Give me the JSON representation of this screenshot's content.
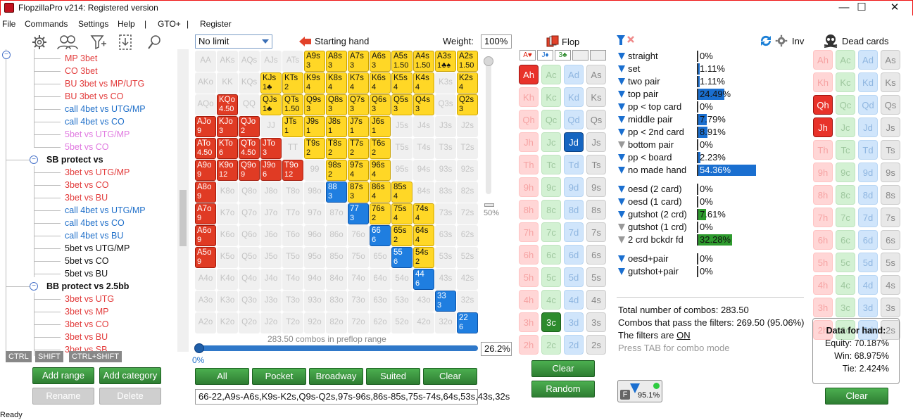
{
  "window": {
    "title": "FlopzillaPro v214: Registered version"
  },
  "menu": [
    "File",
    "Commands",
    "Settings",
    "Help",
    "|",
    "GTO+",
    "|",
    "Register"
  ],
  "tree": [
    {
      "t": "MP 3bet",
      "c": "#e23b3b",
      "lvl": 2
    },
    {
      "t": "CO 3bet",
      "c": "#e23b3b",
      "lvl": 2
    },
    {
      "t": "BU 3bet vs MP/UTG",
      "c": "#e23b3b",
      "lvl": 2
    },
    {
      "t": "BU 3bet vs CO",
      "c": "#e23b3b",
      "lvl": 2
    },
    {
      "t": "call 4bet vs UTG/MP",
      "c": "#1f6fc9",
      "lvl": 2
    },
    {
      "t": "call 4bet vs CO",
      "c": "#1f6fc9",
      "lvl": 2
    },
    {
      "t": "5bet vs UTG/MP",
      "c": "#e07ae0",
      "lvl": 2
    },
    {
      "t": "5bet vs CO",
      "c": "#e07ae0",
      "lvl": 2
    },
    {
      "t": "SB protect vs",
      "c": "#111111",
      "lvl": 1,
      "bold": true
    },
    {
      "t": "3bet vs UTG/MP",
      "c": "#e23b3b",
      "lvl": 2
    },
    {
      "t": "3bet vs CO",
      "c": "#e23b3b",
      "lvl": 2
    },
    {
      "t": "3bet vs BU",
      "c": "#e23b3b",
      "lvl": 2
    },
    {
      "t": "call 4bet vs UTG/MP",
      "c": "#1f6fc9",
      "lvl": 2
    },
    {
      "t": "call 4bet vs CO",
      "c": "#1f6fc9",
      "lvl": 2
    },
    {
      "t": "call 4bet vs BU",
      "c": "#1f6fc9",
      "lvl": 2
    },
    {
      "t": "5bet vs UTG/MP",
      "c": "#111111",
      "lvl": 2
    },
    {
      "t": "5bet vs CO",
      "c": "#111111",
      "lvl": 2
    },
    {
      "t": "5bet vs BU",
      "c": "#111111",
      "lvl": 2
    },
    {
      "t": "BB protect vs 2.5bb",
      "c": "#111111",
      "lvl": 1,
      "bold": true
    },
    {
      "t": "3bet vs UTG",
      "c": "#e23b3b",
      "lvl": 2
    },
    {
      "t": "3bet vs MP",
      "c": "#e23b3b",
      "lvl": 2
    },
    {
      "t": "3bet vs CO",
      "c": "#e23b3b",
      "lvl": 2
    },
    {
      "t": "3bet vs BU",
      "c": "#e23b3b",
      "lvl": 2
    },
    {
      "t": "3bet vs SB",
      "c": "#e23b3b",
      "lvl": 2
    }
  ],
  "kbd": [
    "CTRL",
    "SHIFT",
    "CTRL+SHIFT"
  ],
  "left_buttons": {
    "add_range": "Add range",
    "add_category": "Add category",
    "rename": "Rename",
    "delete": "Delete"
  },
  "range": {
    "limit_select": "No limit",
    "starting_hand_label": "Starting hand",
    "weight_label": "Weight:",
    "weight_value": "100%",
    "slider_label": "50%",
    "combos_label": "283.50 combos in preflop range",
    "percent_value": "26.2%",
    "zero_label": "0%",
    "buttons": [
      "All",
      "Pocket",
      "Broadway",
      "Suited",
      "Clear"
    ],
    "range_text": "66-22,A9s-A6s,K9s-K2s,Q9s-Q2s,97s-96s,86s-85s,75s-74s,64s,53s,43s,32s",
    "ranks": [
      "A",
      "K",
      "Q",
      "J",
      "T",
      "9",
      "8",
      "7",
      "6",
      "5",
      "4",
      "3",
      "2"
    ],
    "cells": {
      "A9s": {
        "s": "Y",
        "m": "3"
      },
      "A8s": {
        "s": "Y",
        "m": "3"
      },
      "A7s": {
        "s": "Y",
        "m": "3"
      },
      "A6s": {
        "s": "Y",
        "m": "3"
      },
      "A5s": {
        "s": "Y",
        "m": "1.50"
      },
      "A4s": {
        "s": "Y",
        "m": "1.50"
      },
      "A3s": {
        "s": "Y",
        "m": "1♣♠"
      },
      "A2s": {
        "s": "Y",
        "m": "1.50"
      },
      "KJs": {
        "s": "Y",
        "m": "1♣"
      },
      "KTs": {
        "s": "Y",
        "m": "2"
      },
      "K9s": {
        "s": "Y",
        "m": "4"
      },
      "K8s": {
        "s": "Y",
        "m": "4"
      },
      "K7s": {
        "s": "Y",
        "m": "4"
      },
      "K6s": {
        "s": "Y",
        "m": "4"
      },
      "K5s": {
        "s": "Y",
        "m": "4"
      },
      "K4s": {
        "s": "Y",
        "m": "4"
      },
      "K2s": {
        "s": "Y",
        "m": "4"
      },
      "KQo": {
        "s": "R",
        "m": "4.50"
      },
      "QJs": {
        "s": "Y",
        "m": "1♣"
      },
      "QTs": {
        "s": "Y",
        "m": "1.50"
      },
      "Q9s": {
        "s": "Y",
        "m": "3"
      },
      "Q8s": {
        "s": "Y",
        "m": "3"
      },
      "Q7s": {
        "s": "Y",
        "m": "3"
      },
      "Q6s": {
        "s": "Y",
        "m": "3"
      },
      "Q5s": {
        "s": "Y",
        "m": "3"
      },
      "Q4s": {
        "s": "Y",
        "m": "3"
      },
      "Q2s": {
        "s": "Y",
        "m": "3"
      },
      "AJo": {
        "s": "R",
        "m": "9"
      },
      "KJo": {
        "s": "R",
        "m": "3"
      },
      "QJo": {
        "s": "R",
        "m": "2"
      },
      "JTs": {
        "s": "Y",
        "m": "1"
      },
      "J9s": {
        "s": "Y",
        "m": "1"
      },
      "J8s": {
        "s": "Y",
        "m": "1"
      },
      "J7s": {
        "s": "Y",
        "m": "1"
      },
      "J6s": {
        "s": "Y",
        "m": "1"
      },
      "ATo": {
        "s": "R",
        "m": "4.50"
      },
      "KTo": {
        "s": "R",
        "m": "6"
      },
      "QTo": {
        "s": "R",
        "m": "4.50"
      },
      "JTo": {
        "s": "R",
        "m": "3"
      },
      "T9s": {
        "s": "Y",
        "m": "2"
      },
      "T8s": {
        "s": "Y",
        "m": "2"
      },
      "T7s": {
        "s": "Y",
        "m": "2"
      },
      "T6s": {
        "s": "Y",
        "m": "2"
      },
      "A9o": {
        "s": "R",
        "m": "9"
      },
      "K9o": {
        "s": "R",
        "m": "12"
      },
      "Q9o": {
        "s": "R",
        "m": "9"
      },
      "J9o": {
        "s": "R",
        "m": "6"
      },
      "T9o": {
        "s": "R",
        "m": "12"
      },
      "98s": {
        "s": "Y",
        "m": "2"
      },
      "97s": {
        "s": "Y",
        "m": "4"
      },
      "96s": {
        "s": "Y",
        "m": "4"
      },
      "A8o": {
        "s": "R",
        "m": "9"
      },
      "88": {
        "s": "B",
        "m": "3"
      },
      "87s": {
        "s": "Y",
        "m": "3"
      },
      "86s": {
        "s": "Y",
        "m": "4"
      },
      "85s": {
        "s": "Y",
        "m": "4"
      },
      "A7o": {
        "s": "R",
        "m": "9"
      },
      "77": {
        "s": "B",
        "m": "3"
      },
      "76s": {
        "s": "Y",
        "m": "2"
      },
      "75s": {
        "s": "Y",
        "m": "4"
      },
      "74s": {
        "s": "Y",
        "m": "4"
      },
      "A6o": {
        "s": "R",
        "m": "9"
      },
      "66": {
        "s": "B",
        "m": "6"
      },
      "65s": {
        "s": "Y",
        "m": "2"
      },
      "64s": {
        "s": "Y",
        "m": "4"
      },
      "A5o": {
        "s": "R",
        "m": "9"
      },
      "55": {
        "s": "B",
        "m": "6"
      },
      "54s": {
        "s": "Y",
        "m": "2"
      },
      "44": {
        "s": "B",
        "m": "6"
      },
      "33": {
        "s": "B",
        "m": "3"
      },
      "22": {
        "s": "B",
        "m": "6"
      }
    }
  },
  "flop": {
    "label": "Flop",
    "slots": [
      "A♥",
      "J♦",
      "3♣",
      "",
      ""
    ],
    "selected": [
      "Ah",
      "Jd",
      "3c"
    ],
    "buttons": {
      "clear": "Clear",
      "random": "Random"
    }
  },
  "filters": {
    "inv_label": "Inv",
    "rows1": [
      {
        "name": "straight",
        "pct": "0%",
        "v": 0,
        "g": false
      },
      {
        "name": "set",
        "pct": "1.11%",
        "v": 1.11,
        "g": false
      },
      {
        "name": "two pair",
        "pct": "1.11%",
        "v": 1.11,
        "g": false
      },
      {
        "name": "top pair",
        "pct": "24.49%",
        "v": 24.49,
        "g": false
      },
      {
        "name": "pp < top card",
        "pct": "0%",
        "v": 0,
        "g": false
      },
      {
        "name": "middle pair",
        "pct": "7.79%",
        "v": 7.79,
        "g": false
      },
      {
        "name": "pp < 2nd card",
        "pct": "8.91%",
        "v": 8.91,
        "g": false
      },
      {
        "name": "bottom pair",
        "pct": "0%",
        "v": 0,
        "g": true
      },
      {
        "name": "pp < board",
        "pct": "2.23%",
        "v": 2.23,
        "g": false
      },
      {
        "name": "no made hand",
        "pct": "54.36%",
        "v": 54.36,
        "g": false
      }
    ],
    "rows2": [
      {
        "name": "oesd (2 card)",
        "pct": "0%",
        "v": 0,
        "g": false
      },
      {
        "name": "oesd (1 card)",
        "pct": "0%",
        "v": 0,
        "g": false
      },
      {
        "name": "gutshot (2 crd)",
        "pct": "7.61%",
        "v": 7.61,
        "g": false,
        "green": true
      },
      {
        "name": "gutshot (1 crd)",
        "pct": "0%",
        "v": 0,
        "g": true
      },
      {
        "name": "2 crd bckdr fd",
        "pct": "32.28%",
        "v": 32.28,
        "g": true,
        "green": true
      }
    ],
    "rows3": [
      {
        "name": "oesd+pair",
        "pct": "0%",
        "v": 0,
        "g": false
      },
      {
        "name": "gutshot+pair",
        "pct": "0%",
        "v": 0,
        "g": false
      }
    ],
    "total_combos": "Total number of combos: 283.50",
    "pass_combos": "Combos that pass the filters: 269.50 (95.06%)",
    "filters_on_prefix": "The filters are ",
    "filters_on_value": "ON",
    "tab_hint": "Press TAB for combo mode",
    "f_badge": "F",
    "f_value": "95.1%"
  },
  "dead_cards": {
    "label": "Dead cards",
    "selected": [
      "Qh",
      "Jh"
    ],
    "data_title": "Data for hand:",
    "equity": "Equity: 70.187%",
    "win": "Win: 68.975%",
    "tie": "Tie: 2.424%",
    "clear": "Clear"
  },
  "card_ranks": [
    "A",
    "K",
    "Q",
    "J",
    "T",
    "9",
    "8",
    "7",
    "6",
    "5",
    "4",
    "3",
    "2"
  ],
  "status": "Ready"
}
